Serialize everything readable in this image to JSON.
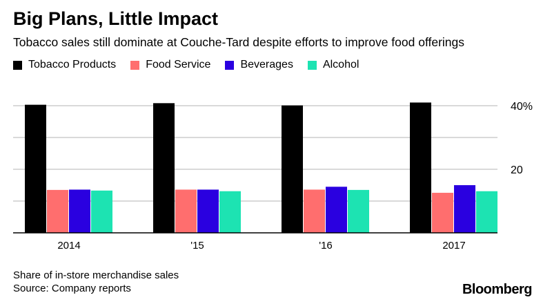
{
  "title": "Big Plans, Little Impact",
  "subtitle": "Tobacco sales still dominate at Couche-Tard despite efforts to improve food offerings",
  "footnote": "Share of in-store merchandise sales",
  "source": "Source: Company reports",
  "brand": "Bloomberg",
  "colors": {
    "tobacco": "#000000",
    "food_service": "#ff6e6e",
    "beverages": "#2a00e0",
    "alcohol": "#1de3b2",
    "grid": "#b3b3b3",
    "axis": "#000000"
  },
  "chart_data": {
    "type": "bar",
    "categories": [
      "2014",
      "'15",
      "'16",
      "2017"
    ],
    "series": [
      {
        "name": "Tobacco Products",
        "color_key": "tobacco",
        "values": [
          40.3,
          40.8,
          40.1,
          41.0
        ]
      },
      {
        "name": "Food Service",
        "color_key": "food_service",
        "values": [
          13.5,
          13.6,
          13.6,
          12.6
        ]
      },
      {
        "name": "Beverages",
        "color_key": "beverages",
        "values": [
          13.6,
          13.6,
          14.5,
          15.0
        ]
      },
      {
        "name": "Alcohol",
        "color_key": "alcohol",
        "values": [
          13.3,
          13.1,
          13.5,
          13.1
        ]
      }
    ],
    "yticks": [
      {
        "value": 0,
        "label": ""
      },
      {
        "value": 10,
        "label": ""
      },
      {
        "value": 20,
        "label": "20"
      },
      {
        "value": 30,
        "label": ""
      },
      {
        "value": 40,
        "label": "40%"
      }
    ],
    "ylim": [
      0,
      40
    ],
    "grid": true,
    "y_axis_side": "right",
    "legend_placement": "top-left",
    "xlabel": "",
    "ylabel": ""
  }
}
